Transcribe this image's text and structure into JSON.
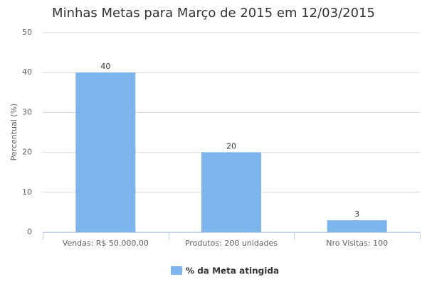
{
  "chart_data": {
    "type": "bar",
    "title": "Minhas Metas para Março de 2015 em 12/03/2015",
    "y_label": "Percentual (%)",
    "categories": [
      "Vendas: R$ 50.000,00",
      "Produtos: 200 unidades",
      "Nro Visitas: 100"
    ],
    "series": [
      {
        "name": "% da Meta atingida",
        "color": "#7cb5ec",
        "values": [
          40,
          20,
          3
        ]
      }
    ],
    "ylim": [
      0,
      50
    ],
    "yticks": [
      0,
      10,
      20,
      30,
      40,
      50
    ],
    "grid": true,
    "legend": "bottom"
  }
}
